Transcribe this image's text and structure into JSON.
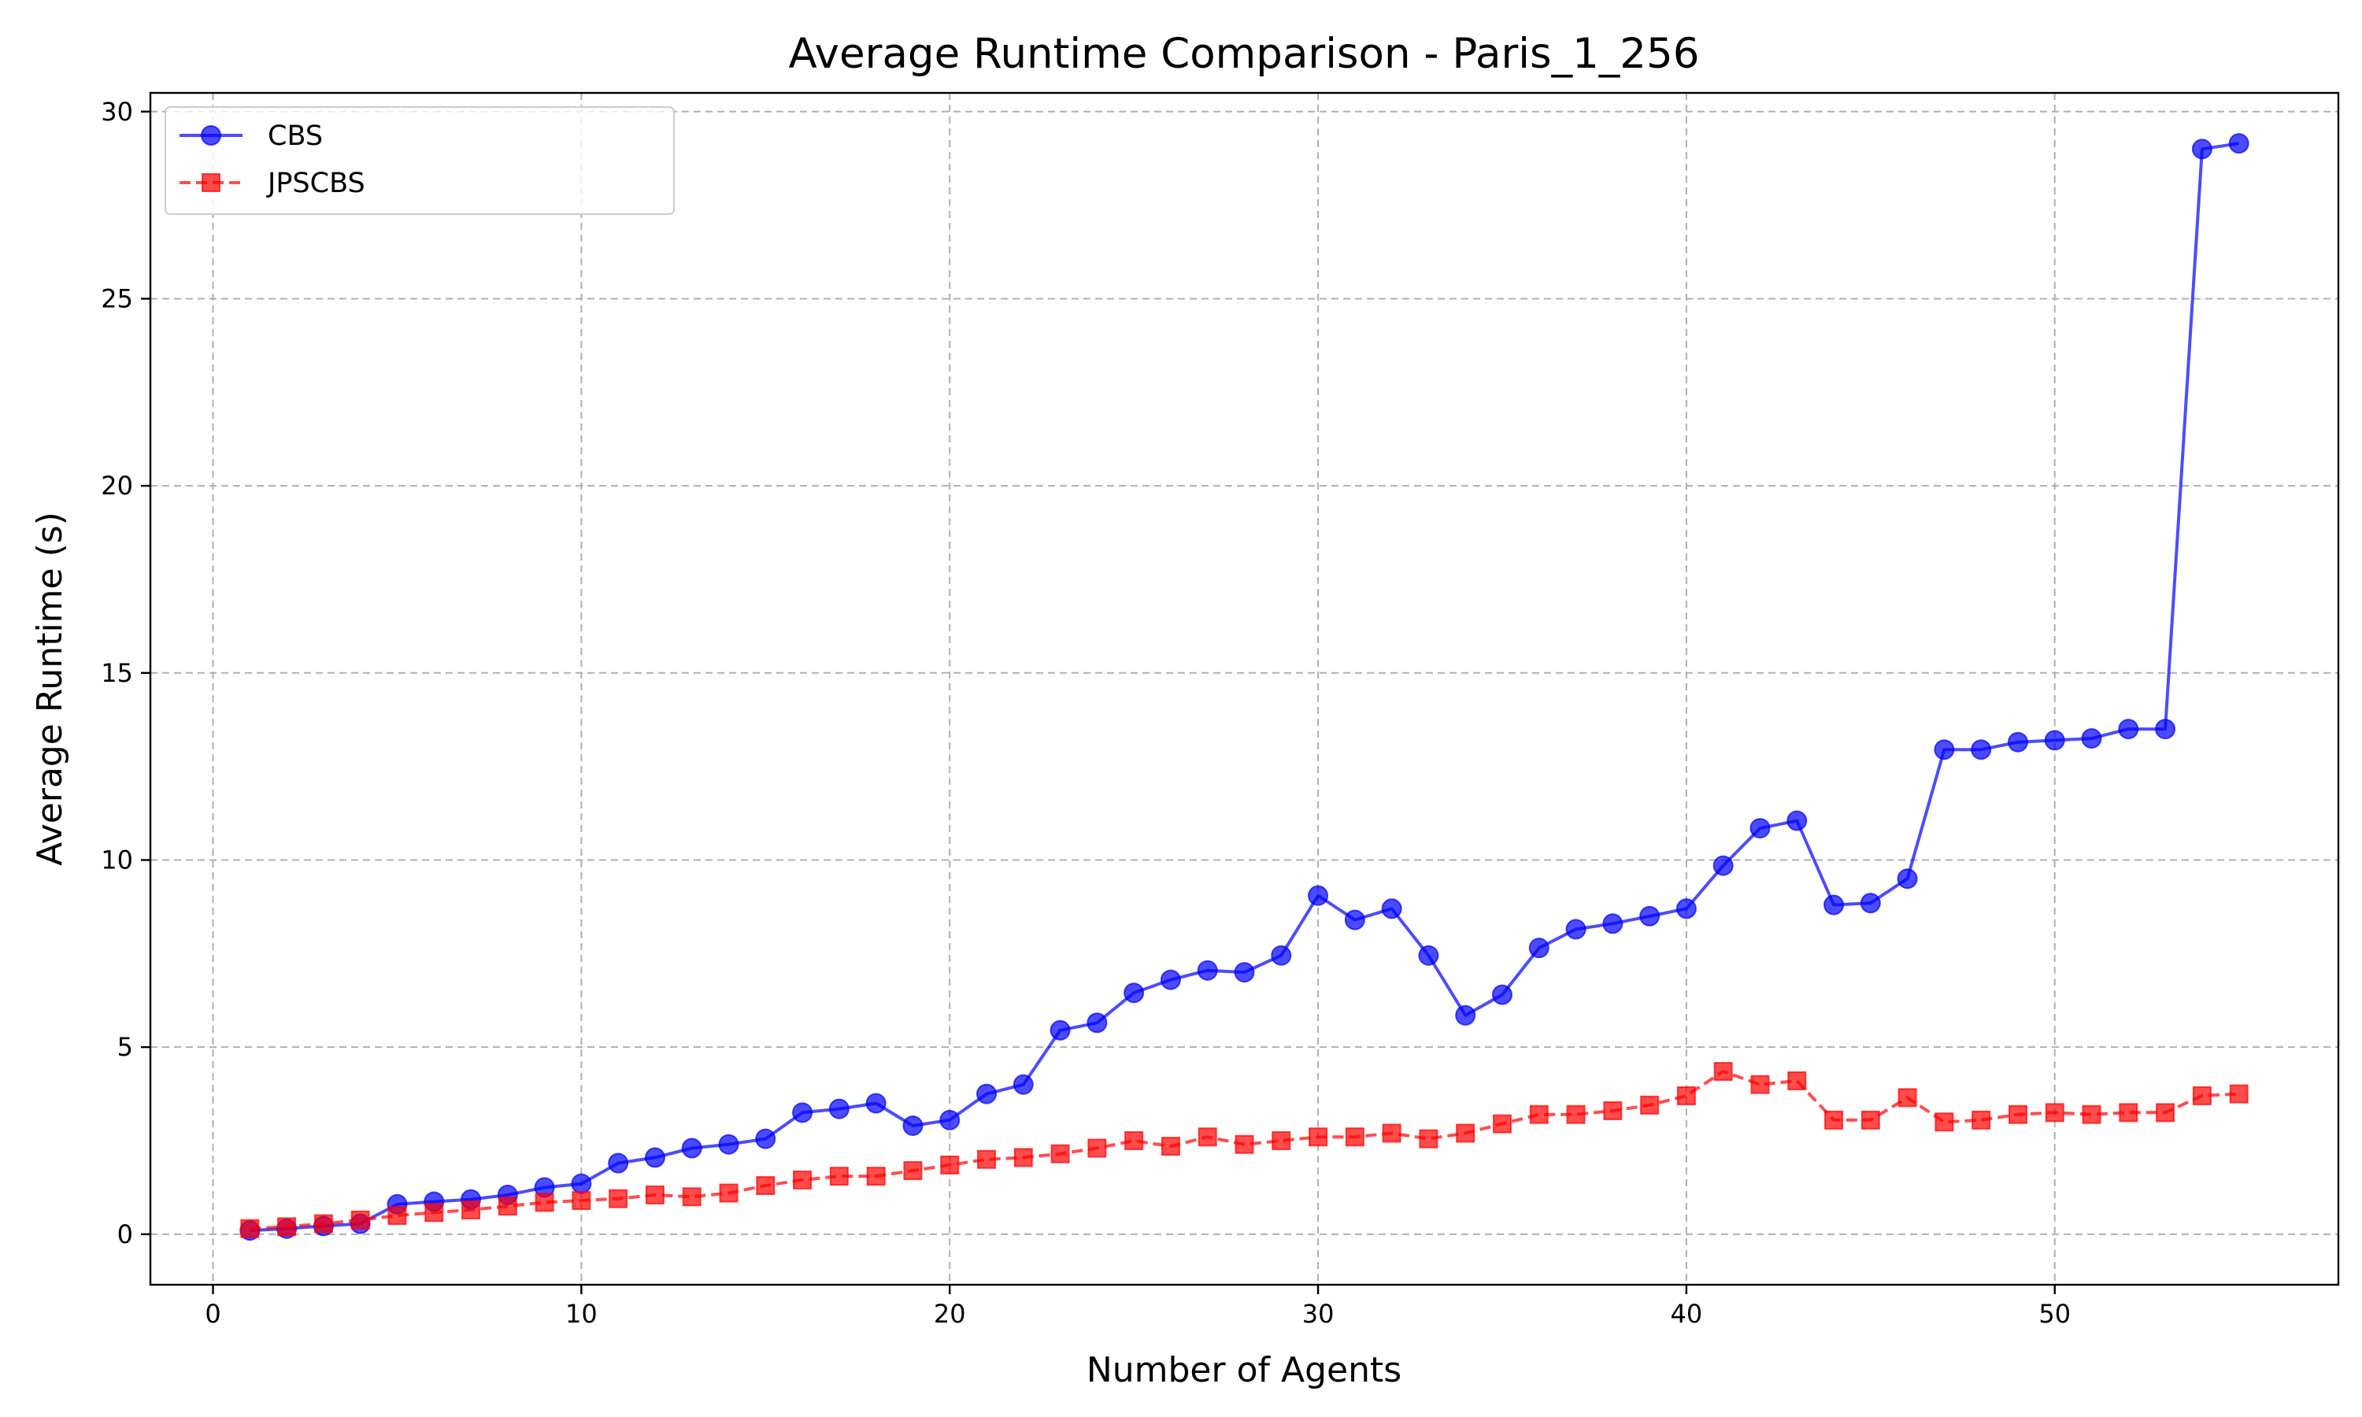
{
  "chart_data": {
    "type": "line",
    "title": "Average Runtime Comparison - Paris_1_256",
    "xlabel": "Number of Agents",
    "ylabel": "Average Runtime (s)",
    "xlim": [
      -1.7,
      57.7
    ],
    "ylim": [
      -1.35,
      30.5
    ],
    "xticks": [
      0,
      10,
      20,
      30,
      40,
      50
    ],
    "yticks": [
      0,
      5,
      10,
      15,
      20,
      25,
      30
    ],
    "grid": true,
    "legend_position": "top-left",
    "x": [
      1,
      2,
      3,
      4,
      5,
      6,
      7,
      8,
      9,
      10,
      11,
      12,
      13,
      14,
      15,
      16,
      17,
      18,
      19,
      20,
      21,
      22,
      23,
      24,
      25,
      26,
      27,
      28,
      29,
      30,
      31,
      32,
      33,
      34,
      35,
      36,
      37,
      38,
      39,
      40,
      41,
      42,
      43,
      44,
      45,
      46,
      47,
      48,
      49,
      50,
      51,
      52,
      53,
      54,
      55
    ],
    "series": [
      {
        "name": "CBS",
        "color": "#0000ff",
        "marker": "circle",
        "linestyle": "solid",
        "values": [
          0.1,
          0.15,
          0.22,
          0.28,
          0.8,
          0.87,
          0.93,
          1.05,
          1.25,
          1.35,
          1.9,
          2.05,
          2.3,
          2.4,
          2.55,
          3.25,
          3.35,
          3.5,
          2.9,
          3.05,
          3.75,
          4.0,
          5.45,
          5.65,
          6.45,
          6.8,
          7.05,
          7.0,
          7.45,
          9.05,
          8.4,
          8.7,
          7.45,
          5.85,
          6.4,
          7.65,
          8.15,
          8.3,
          8.5,
          8.7,
          9.85,
          10.85,
          11.05,
          8.8,
          8.85,
          9.5,
          12.95,
          12.95,
          13.15,
          13.2,
          13.25,
          13.5,
          13.5,
          29.0,
          29.15
        ]
      },
      {
        "name": "JPSCBS",
        "color": "#ff0000",
        "marker": "square",
        "linestyle": "dashed",
        "values": [
          0.15,
          0.2,
          0.28,
          0.38,
          0.5,
          0.58,
          0.65,
          0.75,
          0.85,
          0.9,
          0.95,
          1.05,
          1.0,
          1.1,
          1.3,
          1.45,
          1.55,
          1.55,
          1.7,
          1.85,
          2.0,
          2.05,
          2.15,
          2.3,
          2.5,
          2.35,
          2.6,
          2.4,
          2.5,
          2.6,
          2.6,
          2.7,
          2.55,
          2.7,
          2.95,
          3.2,
          3.2,
          3.3,
          3.45,
          3.7,
          4.35,
          4.0,
          4.1,
          3.05,
          3.05,
          3.65,
          3.0,
          3.05,
          3.2,
          3.25,
          3.2,
          3.25,
          3.25,
          3.7,
          3.75
        ]
      }
    ]
  }
}
